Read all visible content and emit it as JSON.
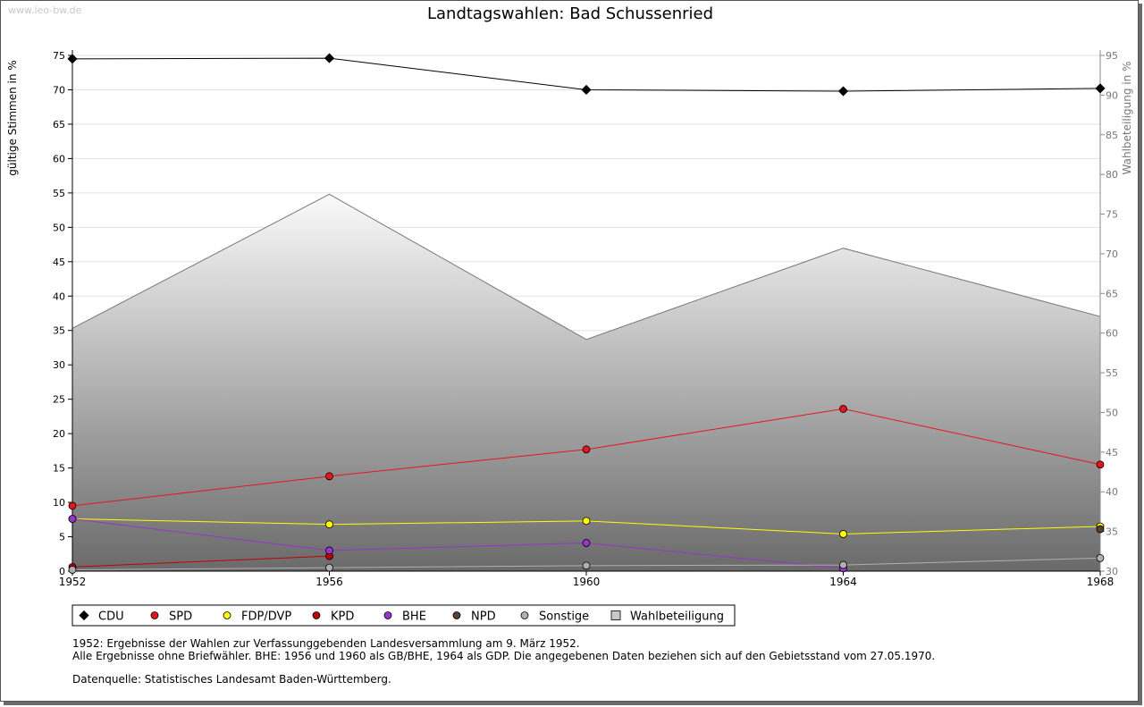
{
  "watermark": "www.leo-bw.de",
  "chart_data": {
    "type": "line",
    "title": "Landtagswahlen: Bad Schussenried",
    "ylabel": "gültige Stimmen in %",
    "y2label": "Wahlbeteiligung in %",
    "x": [
      "1952",
      "1956",
      "1960",
      "1964",
      "1968"
    ],
    "ylim": [
      0,
      75
    ],
    "yticks": [
      "0",
      "5",
      "10",
      "15",
      "20",
      "25",
      "30",
      "35",
      "40",
      "45",
      "50",
      "55",
      "60",
      "65",
      "70",
      "75"
    ],
    "y2lim": [
      30,
      95
    ],
    "y2ticks": [
      "30",
      "35",
      "40",
      "45",
      "50",
      "55",
      "60",
      "65",
      "70",
      "75",
      "80",
      "85",
      "90",
      "95"
    ],
    "grid": true,
    "area": {
      "name": "Wahlbeteiligung",
      "values": [
        60.6,
        77.5,
        59.2,
        70.7,
        62.1
      ],
      "color": "#888888"
    },
    "series": [
      {
        "name": "CDU",
        "color": "#000000",
        "marker": "diamond",
        "values": [
          74.5,
          74.6,
          70.0,
          69.8,
          70.2
        ]
      },
      {
        "name": "SPD",
        "color": "#e8141c",
        "marker": "circle",
        "values": [
          9.5,
          13.8,
          17.7,
          23.6,
          15.5
        ]
      },
      {
        "name": "FDP/DVP",
        "color": "#ffff00",
        "marker": "circle",
        "values": [
          7.6,
          6.8,
          7.3,
          5.4,
          6.5
        ]
      },
      {
        "name": "KPD",
        "color": "#c00000",
        "marker": "circle",
        "values": [
          0.6,
          2.2,
          null,
          null,
          null
        ]
      },
      {
        "name": "BHE",
        "color": "#9933cc",
        "marker": "circle",
        "values": [
          7.6,
          3.0,
          4.1,
          0.4,
          null
        ]
      },
      {
        "name": "NPD",
        "color": "#5c4030",
        "marker": "circle",
        "values": [
          null,
          null,
          null,
          null,
          6.1
        ]
      },
      {
        "name": "Sonstige",
        "color": "#b0b0b0",
        "marker": "circle",
        "values": [
          0.2,
          0.5,
          0.8,
          0.9,
          1.9
        ]
      }
    ],
    "legend": [
      {
        "label": "CDU",
        "color": "#000000",
        "shape": "diamond"
      },
      {
        "label": "SPD",
        "color": "#e8141c",
        "shape": "circle"
      },
      {
        "label": "FDP/DVP",
        "color": "#ffff00",
        "shape": "circle"
      },
      {
        "label": "KPD",
        "color": "#c00000",
        "shape": "circle"
      },
      {
        "label": "BHE",
        "color": "#9933cc",
        "shape": "circle"
      },
      {
        "label": "NPD",
        "color": "#5c4030",
        "shape": "circle"
      },
      {
        "label": "Sonstige",
        "color": "#b0b0b0",
        "shape": "circle"
      },
      {
        "label": "Wahlbeteiligung",
        "color": "#c8c8c8",
        "shape": "square"
      }
    ]
  },
  "notes": {
    "line1": "1952: Ergebnisse der Wahlen zur Verfassunggebenden Landesversammlung am 9. März 1952.",
    "line2": "Alle Ergebnisse ohne Briefwähler. BHE: 1956 und 1960 als GB/BHE, 1964 als GDP. Die angegebenen Daten beziehen sich auf den Gebietsstand vom 27.05.1970.",
    "source": "Datenquelle: Statistisches Landesamt Baden-Württemberg."
  }
}
